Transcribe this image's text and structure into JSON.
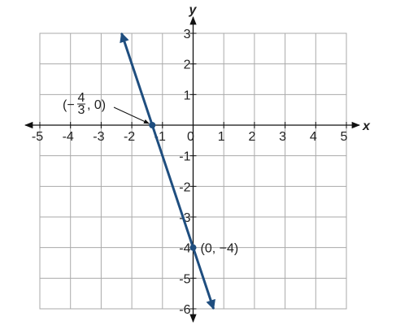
{
  "chart_data": {
    "type": "line",
    "x_label": "x",
    "y_label": "y",
    "xlim": [
      -5,
      5
    ],
    "ylim": [
      -6,
      3
    ],
    "xticks": [
      -5,
      -4,
      -3,
      -2,
      -1,
      0,
      1,
      2,
      3,
      4,
      5
    ],
    "yticks": [
      -6,
      -5,
      -4,
      -3,
      -2,
      -1,
      1,
      2,
      3
    ],
    "grid": true,
    "series": [
      {
        "color": "#1f4e7f",
        "x": [
          -2.333,
          0.667
        ],
        "values": [
          3,
          -6
        ]
      }
    ],
    "points": [
      {
        "x": -1.333,
        "y": 0,
        "label_parts": [
          "(−",
          "4",
          "3",
          ", 0)"
        ]
      },
      {
        "x": 0,
        "y": -4,
        "label_parts": [
          "(0, −4)"
        ]
      }
    ]
  }
}
